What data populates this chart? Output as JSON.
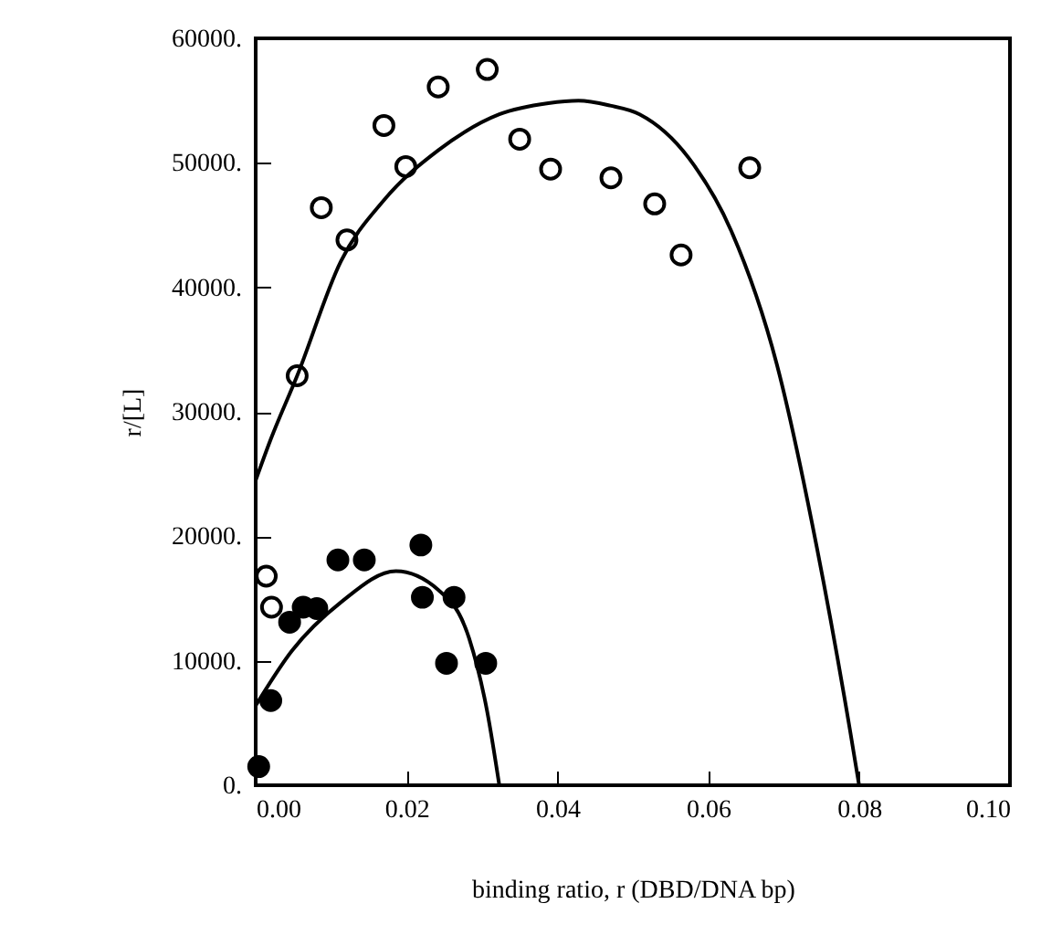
{
  "chart_data": {
    "type": "scatter",
    "xlabel": "binding ratio, r (DBD/DNA bp)",
    "ylabel": "r/[L]",
    "xlim": [
      0,
      0.1
    ],
    "ylim": [
      0,
      60000
    ],
    "xticks": [
      {
        "value": 0,
        "label": "0.00"
      },
      {
        "value": 0.02,
        "label": "0.02"
      },
      {
        "value": 0.04,
        "label": "0.04"
      },
      {
        "value": 0.06,
        "label": "0.06"
      },
      {
        "value": 0.08,
        "label": "0.08"
      },
      {
        "value": 0.1,
        "label": "0.10"
      }
    ],
    "yticks": [
      {
        "value": 0,
        "label": "0."
      },
      {
        "value": 10000,
        "label": "10000."
      },
      {
        "value": 20000,
        "label": "20000."
      },
      {
        "value": 30000,
        "label": "30000."
      },
      {
        "value": 40000,
        "label": "40000."
      },
      {
        "value": 50000,
        "label": "50000."
      },
      {
        "value": 60000,
        "label": "60000."
      }
    ],
    "grid": false,
    "marker": "circle",
    "series": [
      {
        "color": "#000000",
        "x": [
          0.0014,
          0.0021,
          0.0055,
          0.0087,
          0.0121,
          0.017,
          0.0199,
          0.0242,
          0.0307,
          0.035,
          0.0391,
          0.0471,
          0.0529,
          0.0564,
          0.0655
        ],
        "values": [
          16800,
          14300,
          32900,
          46400,
          43800,
          53000,
          49700,
          56100,
          57500,
          51900,
          49500,
          48800,
          46700,
          42600,
          49600
        ]
      },
      {
        "type": "line",
        "color": "#000000",
        "marker": "none",
        "x": [
          0,
          0.002,
          0.0055,
          0.0113,
          0.017,
          0.0242,
          0.0323,
          0.0388,
          0.0428,
          0.047,
          0.0509,
          0.0574,
          0.063,
          0.0691,
          0.0744,
          0.0788,
          0.08
        ],
        "values": [
          24500,
          27800,
          32900,
          42100,
          47000,
          51000,
          53900,
          54800,
          55000,
          54600,
          53900,
          50400,
          44600,
          33800,
          19100,
          4400,
          0
        ]
      },
      {
        "color": "#000000",
        "x": [
          0.0004,
          0.002,
          0.0045,
          0.0063,
          0.0081,
          0.0109,
          0.0144,
          0.0219,
          0.0221,
          0.0263,
          0.0253,
          0.0305
        ],
        "values": [
          1500,
          6800,
          13100,
          14300,
          14200,
          18100,
          18100,
          19300,
          15100,
          15100,
          9800,
          9800
        ]
      },
      {
        "type": "line",
        "color": "#000000",
        "marker": "none",
        "x": [
          0,
          0.0048,
          0.0113,
          0.0186,
          0.0242,
          0.0283,
          0.0307,
          0.0323
        ],
        "values": [
          6400,
          10800,
          14700,
          17200,
          15700,
          11800,
          5900,
          0
        ]
      }
    ]
  }
}
